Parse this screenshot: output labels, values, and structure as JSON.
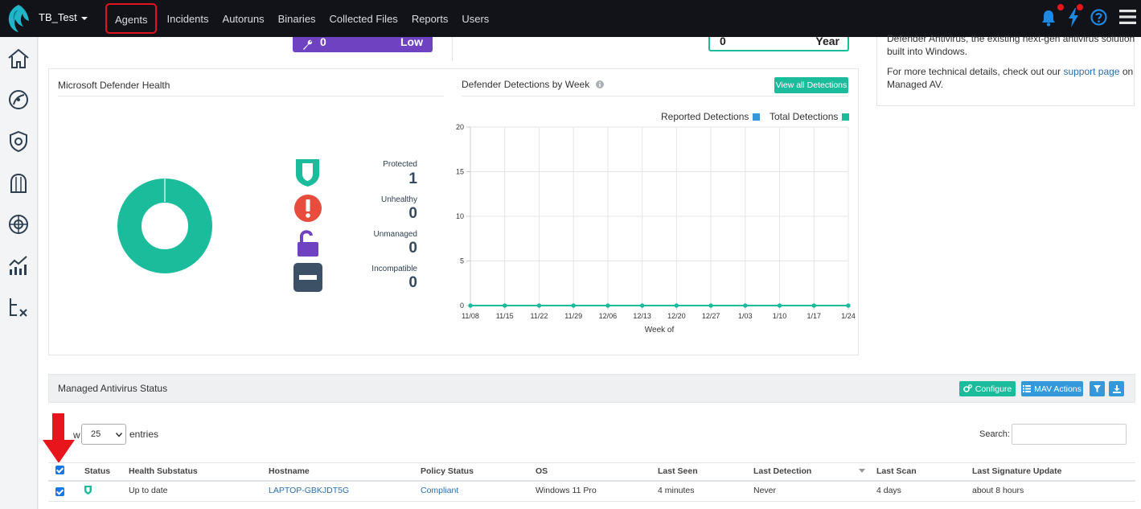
{
  "topbar": {
    "tenant": "TB_Test",
    "nav": [
      "Agents",
      "Incidents",
      "Autoruns",
      "Binaries",
      "Collected Files",
      "Reports",
      "Users"
    ],
    "help_icon": "question-circle-icon",
    "colors": {
      "accent": "#1e88e5",
      "alert": "#e8151c"
    }
  },
  "tiles": {
    "purple_value": "0",
    "purple_label": "Low",
    "year_value": "0",
    "year_label": "Year"
  },
  "side_card": {
    "line1": "Defender Antivirus, the existing next-gen antivirus solution",
    "line2": "built into Windows.",
    "para2_prefix": "For more technical details, check out our ",
    "para2_link": "support page",
    "para2_suffix": " on",
    "para2_line2": "Managed AV."
  },
  "health": {
    "title": "Microsoft Defender Health",
    "donut_protected_fraction": 1,
    "stats": [
      {
        "label": "Protected",
        "value": "1",
        "color": "#1abc9c"
      },
      {
        "label": "Unhealthy",
        "value": "0",
        "color": "#e74c3c"
      },
      {
        "label": "Unmanaged",
        "value": "0",
        "color": "#6f42c1"
      },
      {
        "label": "Incompatible",
        "value": "0",
        "color": "#3d5166"
      }
    ]
  },
  "detections": {
    "title": "Defender Detections by Week",
    "view_all": "View all Detections"
  },
  "chart_data": {
    "type": "line",
    "title": "Defender Detections by Week",
    "xlabel": "Week of",
    "ylabel": "",
    "categories": [
      "11/08",
      "11/15",
      "11/22",
      "11/29",
      "12/06",
      "12/13",
      "12/20",
      "12/27",
      "1/03",
      "1/10",
      "1/17",
      "1/24"
    ],
    "series": [
      {
        "name": "Reported Detections",
        "color": "#3498db",
        "values": [
          0,
          0,
          0,
          0,
          0,
          0,
          0,
          0,
          0,
          0,
          0,
          0
        ]
      },
      {
        "name": "Total Detections",
        "color": "#1abc9c",
        "values": [
          0,
          0,
          0,
          0,
          0,
          0,
          0,
          0,
          0,
          0,
          0,
          0
        ]
      }
    ],
    "yticks": [
      0,
      5,
      10,
      15,
      20
    ],
    "ylim": [
      0,
      20
    ],
    "grid": true,
    "legend": "top-right"
  },
  "mav": {
    "title": "Managed Antivirus Status",
    "configure": "Configure",
    "mav_actions": "MAV Actions",
    "show_prefix": "w",
    "show_value": "25",
    "entries": "entries",
    "search_label": "Search:",
    "columns": [
      "Status",
      "Health Substatus",
      "Hostname",
      "Policy Status",
      "OS",
      "Last Seen",
      "Last Detection",
      "Last Scan",
      "Last Signature Update"
    ],
    "rows": [
      {
        "health": "Up to date",
        "hostname": "LAPTOP-GBKJDT5G",
        "policy": "Compliant",
        "os": "Windows 11 Pro",
        "last_seen": "4 minutes",
        "last_detection": "Never",
        "last_scan": "4 days",
        "last_sig": "about 8 hours"
      }
    ]
  }
}
